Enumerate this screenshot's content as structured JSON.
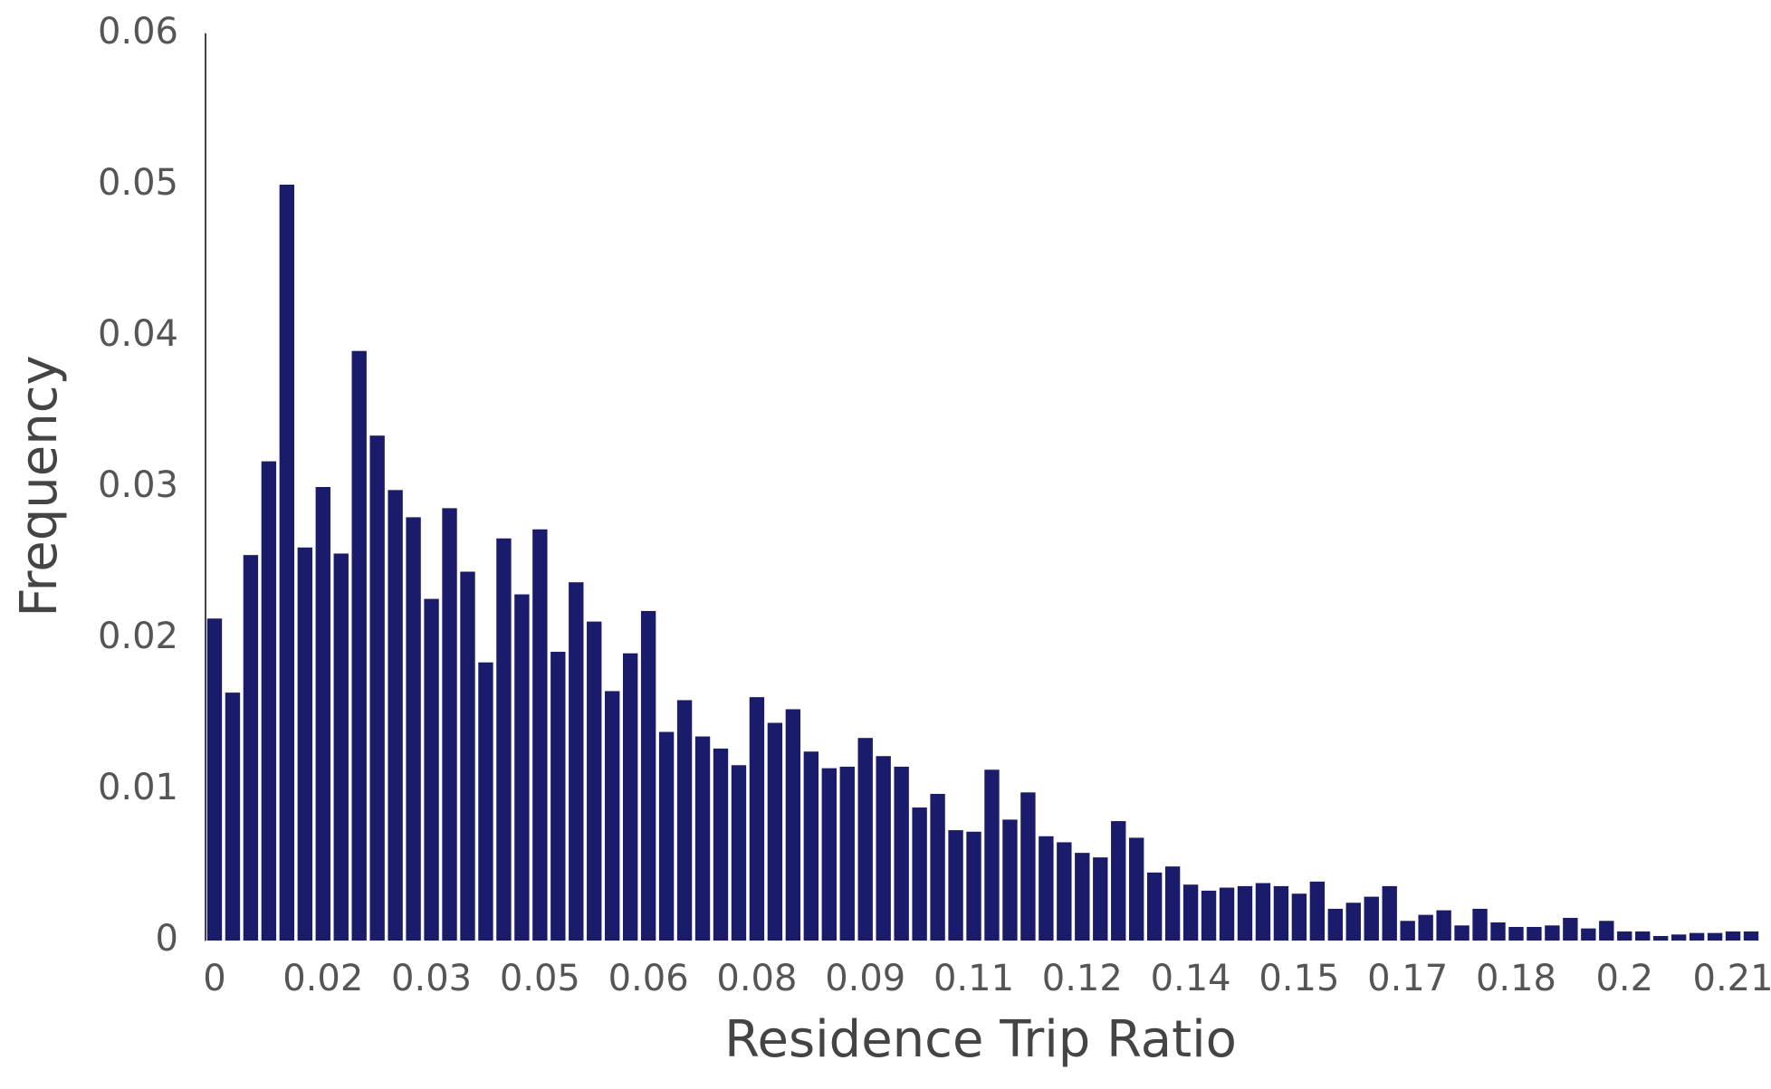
{
  "chart_data": {
    "type": "bar",
    "x_label": "Residence Trip Ratio",
    "y_label": "Frequency",
    "color": "#1b1b6b",
    "categories": [
      "0",
      null,
      null,
      null,
      null,
      null,
      "0.02",
      null,
      null,
      null,
      null,
      null,
      "0.03",
      null,
      null,
      null,
      null,
      null,
      "0.05",
      null,
      null,
      null,
      null,
      null,
      "0.06",
      null,
      null,
      null,
      null,
      null,
      "0.08",
      null,
      null,
      null,
      null,
      null,
      "0.09",
      null,
      null,
      null,
      null,
      null,
      "0.11",
      null,
      null,
      null,
      null,
      null,
      "0.12",
      null,
      null,
      null,
      null,
      null,
      "0.14",
      null,
      null,
      null,
      null,
      null,
      "0.15",
      null,
      null,
      null,
      null,
      null,
      "0.17",
      null,
      null,
      null,
      null,
      null,
      "0.18",
      null,
      null,
      null,
      null,
      null,
      "0.2",
      null,
      null,
      null,
      null,
      null,
      "0.21",
      null
    ],
    "values": [
      0.0213,
      0.0164,
      0.0255,
      0.0317,
      0.05,
      0.026,
      0.03,
      0.0256,
      0.039,
      0.0334,
      0.0298,
      0.028,
      0.0226,
      0.0286,
      0.0244,
      0.0184,
      0.0266,
      0.0229,
      0.0272,
      0.0191,
      0.0237,
      0.0211,
      0.0165,
      0.019,
      0.0218,
      0.0138,
      0.0159,
      0.0135,
      0.0127,
      0.0116,
      0.0161,
      0.0144,
      0.0153,
      0.0125,
      0.0114,
      0.0115,
      0.0134,
      0.0122,
      0.0115,
      0.0088,
      0.0097,
      0.0073,
      0.0072,
      0.0113,
      0.008,
      0.0098,
      0.0069,
      0.0065,
      0.0058,
      0.0055,
      0.0079,
      0.0068,
      0.0045,
      0.0049,
      0.0037,
      0.0033,
      0.0035,
      0.0036,
      0.0038,
      0.0036,
      0.0031,
      0.0039,
      0.0021,
      0.0025,
      0.0029,
      0.0036,
      0.0013,
      0.0017,
      0.002,
      0.001,
      0.0021,
      0.0012,
      0.0009,
      0.0009,
      0.001,
      0.0015,
      0.0008,
      0.0013,
      0.0006,
      0.0006,
      0.0003,
      0.0004,
      0.0005,
      0.0005,
      0.0006,
      0.0006
    ],
    "ylim": [
      0,
      0.06
    ],
    "yticks": [
      0,
      0.01,
      0.02,
      0.03,
      0.04,
      0.05,
      0.06
    ]
  }
}
